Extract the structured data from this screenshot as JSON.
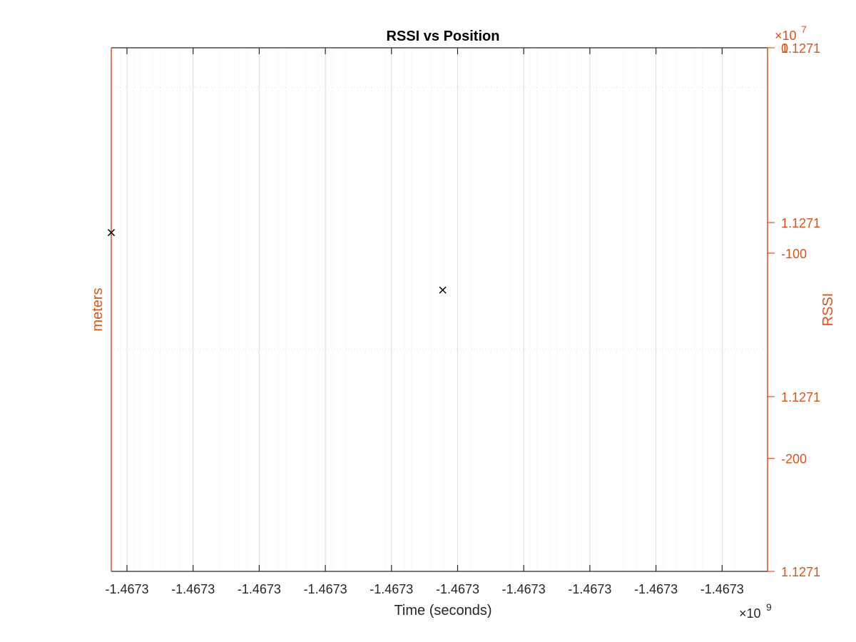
{
  "colors": {
    "accent": "#D95319",
    "axis_dark": "#262626",
    "marker": "#000000",
    "major_grid": "#dcdcdc",
    "minor_grid": "#ececec"
  },
  "chart_data": {
    "type": "scatter",
    "title": "RSSI vs Position",
    "xlabel": "Time (seconds)",
    "ylabel_left": "meters",
    "ylabel_right": "RSSI",
    "x_exponent": {
      "base": "×10",
      "power": "9"
    },
    "y_exponent": {
      "base": "×10",
      "power": "7"
    },
    "x_tick_labels": [
      "-1.4673",
      "-1.4673",
      "-1.4673",
      "-1.4673",
      "-1.4673",
      "-1.4673",
      "-1.4673",
      "-1.4673",
      "-1.4673",
      "-1.4673"
    ],
    "right_outer_tick_labels": [
      "1.1271",
      "1.1271",
      "1.1271",
      "1.1271"
    ],
    "right_inner_tick_labels": [
      "-100",
      "-200"
    ],
    "right_inner_overlap_label": "0",
    "grid": true,
    "minor_grid": true,
    "marker": "x",
    "series": [
      {
        "points": [
          {
            "x": 0.0,
            "y": -90
          },
          {
            "x": 0.505,
            "y": -118
          }
        ]
      }
    ],
    "x_range_note": "values share displayed label -1.4673e9",
    "rssi_ylim": [
      -255,
      0
    ]
  }
}
